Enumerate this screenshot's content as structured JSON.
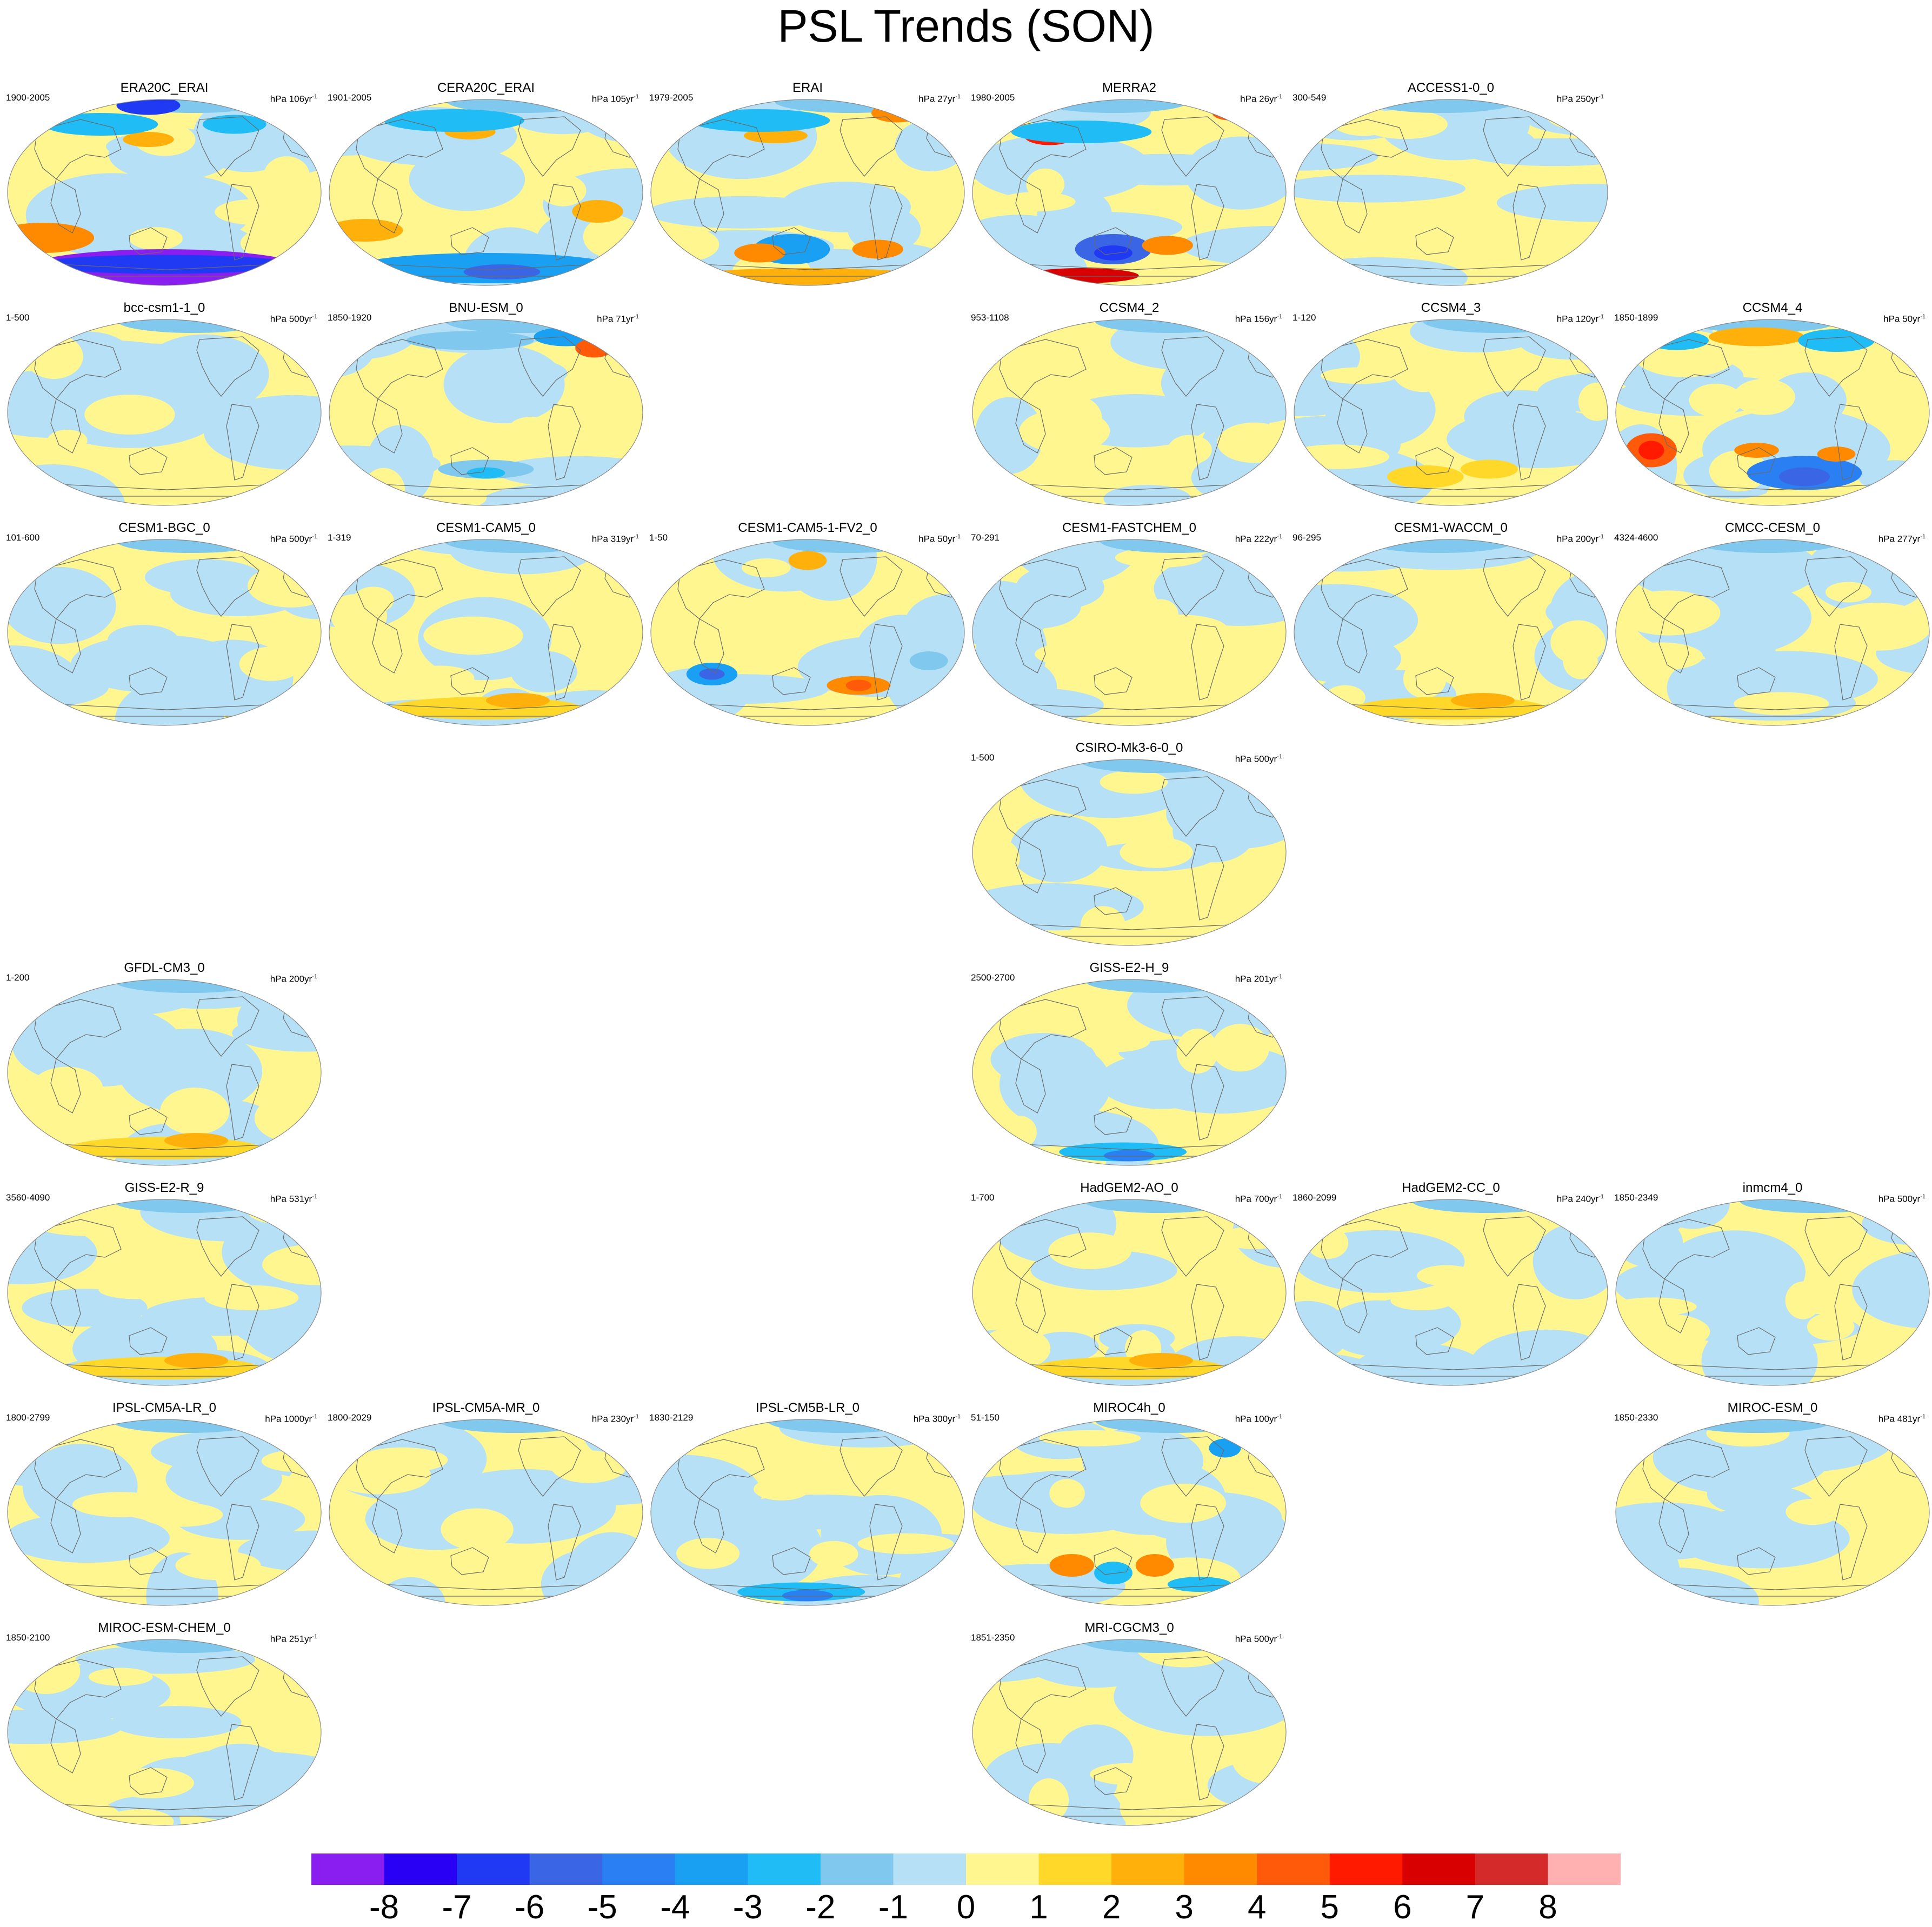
{
  "title": "PSL Trends (SON)",
  "colorbar": {
    "levels": [
      "-8",
      "-7",
      "-6",
      "-5",
      "-4",
      "-3",
      "-2",
      "-1",
      "0",
      "1",
      "2",
      "3",
      "4",
      "5",
      "6",
      "7",
      "8"
    ],
    "colors": [
      "#8a1ef0",
      "#2a00f5",
      "#1f3af2",
      "#3a66e6",
      "#2a80f2",
      "#1aa0f2",
      "#20bcf5",
      "#80c8ee",
      "#b6e0f5",
      "#fff690",
      "#ffd82a",
      "#ffb00a",
      "#ff8a00",
      "#ff5a0a",
      "#ff1a00",
      "#d80000",
      "#d42a2a",
      "#ffb0b0"
    ]
  },
  "panels": [
    {
      "id": "era20c-erai",
      "name": "ERA20C_ERAI",
      "range": "1900-2005",
      "unit": "hPa 106yr",
      "row": 0,
      "col": 0,
      "pattern": "strong-neg-south",
      "seed": 11
    },
    {
      "id": "cera20c-erai",
      "name": "CERA20C_ERAI",
      "range": "1901-2005",
      "unit": "hPa 105yr",
      "row": 0,
      "col": 1,
      "pattern": "warm-neg-south",
      "seed": 12
    },
    {
      "id": "erai",
      "name": "ERAI",
      "range": "1979-2005",
      "unit": "hPa 27yr",
      "row": 0,
      "col": 2,
      "pattern": "warm-dipole-south",
      "seed": 13
    },
    {
      "id": "merra2",
      "name": "MERRA2",
      "range": "1980-2005",
      "unit": "hPa 26yr",
      "row": 0,
      "col": 3,
      "pattern": "red-dipole",
      "seed": 14
    },
    {
      "id": "access1-0",
      "name": "ACCESS1-0_0",
      "range": "300-549",
      "unit": "hPa 250yr",
      "row": 0,
      "col": 4,
      "pattern": "mild",
      "seed": 15
    },
    {
      "id": "bcc-csm1-1",
      "name": "bcc-csm1-1_0",
      "range": "1-500",
      "unit": "hPa 500yr",
      "row": 1,
      "col": 0,
      "pattern": "mild",
      "seed": 21
    },
    {
      "id": "bnu-esm",
      "name": "BNU-ESM_0",
      "range": "1850-1920",
      "unit": "hPa 71yr",
      "row": 1,
      "col": 1,
      "pattern": "north-dipole",
      "seed": 22
    },
    {
      "id": "ccsm4-2",
      "name": "CCSM4_2",
      "range": "953-1108",
      "unit": "hPa 156yr",
      "row": 1,
      "col": 3,
      "pattern": "mild",
      "seed": 23
    },
    {
      "id": "ccsm4-3",
      "name": "CCSM4_3",
      "range": "1-120",
      "unit": "hPa 120yr",
      "row": 1,
      "col": 4,
      "pattern": "mild-south",
      "seed": 24
    },
    {
      "id": "ccsm4-4",
      "name": "CCSM4_4",
      "range": "1850-1899",
      "unit": "hPa 50yr",
      "row": 1,
      "col": 5,
      "pattern": "strong-mixed",
      "seed": 25
    },
    {
      "id": "cesm1-bgc",
      "name": "CESM1-BGC_0",
      "range": "101-600",
      "unit": "hPa 500yr",
      "row": 2,
      "col": 0,
      "pattern": "mild",
      "seed": 31
    },
    {
      "id": "cesm1-cam5",
      "name": "CESM1-CAM5_0",
      "range": "1-319",
      "unit": "hPa 319yr",
      "row": 2,
      "col": 1,
      "pattern": "mild-south-warm",
      "seed": 32
    },
    {
      "id": "cesm1-cam5-1-fv2",
      "name": "CESM1-CAM5-1-FV2_0",
      "range": "1-50",
      "unit": "hPa 50yr",
      "row": 2,
      "col": 2,
      "pattern": "moderate-mixed",
      "seed": 33
    },
    {
      "id": "cesm1-fastchem",
      "name": "CESM1-FASTCHEM_0",
      "range": "70-291",
      "unit": "hPa 222yr",
      "row": 2,
      "col": 3,
      "pattern": "mild",
      "seed": 34
    },
    {
      "id": "cesm1-waccm",
      "name": "CESM1-WACCM_0",
      "range": "96-295",
      "unit": "hPa 200yr",
      "row": 2,
      "col": 4,
      "pattern": "mild-south-warm",
      "seed": 35
    },
    {
      "id": "cmcc-cesm",
      "name": "CMCC-CESM_0",
      "range": "4324-4600",
      "unit": "hPa 277yr",
      "row": 2,
      "col": 5,
      "pattern": "mild",
      "seed": 36
    },
    {
      "id": "csiro-mk3-6-0",
      "name": "CSIRO-Mk3-6-0_0",
      "range": "1-500",
      "unit": "hPa 500yr",
      "row": 3,
      "col": 3,
      "pattern": "mild",
      "seed": 41
    },
    {
      "id": "gfdl-cm3",
      "name": "GFDL-CM3_0",
      "range": "1-200",
      "unit": "hPa 200yr",
      "row": 4,
      "col": 0,
      "pattern": "mild-south-warm",
      "seed": 51
    },
    {
      "id": "giss-e2-h",
      "name": "GISS-E2-H_9",
      "range": "2500-2700",
      "unit": "hPa 201yr",
      "row": 4,
      "col": 3,
      "pattern": "mild-south-cool",
      "seed": 52
    },
    {
      "id": "giss-e2-r",
      "name": "GISS-E2-R_9",
      "range": "3560-4090",
      "unit": "hPa 531yr",
      "row": 5,
      "col": 0,
      "pattern": "mild-south-warm",
      "seed": 61
    },
    {
      "id": "hadgem2-ao",
      "name": "HadGEM2-AO_0",
      "range": "1-700",
      "unit": "hPa 700yr",
      "row": 5,
      "col": 3,
      "pattern": "mild-south-warm",
      "seed": 62
    },
    {
      "id": "hadgem2-cc",
      "name": "HadGEM2-CC_0",
      "range": "1860-2099",
      "unit": "hPa 240yr",
      "row": 5,
      "col": 4,
      "pattern": "mild",
      "seed": 63
    },
    {
      "id": "inmcm4",
      "name": "inmcm4_0",
      "range": "1850-2349",
      "unit": "hPa 500yr",
      "row": 5,
      "col": 5,
      "pattern": "mild",
      "seed": 64
    },
    {
      "id": "ipsl-cm5a-lr",
      "name": "IPSL-CM5A-LR_0",
      "range": "1800-2799",
      "unit": "hPa 1000yr",
      "row": 6,
      "col": 0,
      "pattern": "mild",
      "seed": 71
    },
    {
      "id": "ipsl-cm5a-mr",
      "name": "IPSL-CM5A-MR_0",
      "range": "1800-2029",
      "unit": "hPa 230yr",
      "row": 6,
      "col": 1,
      "pattern": "mild",
      "seed": 72
    },
    {
      "id": "ipsl-cm5b-lr",
      "name": "IPSL-CM5B-LR_0",
      "range": "1830-2129",
      "unit": "hPa 300yr",
      "row": 6,
      "col": 2,
      "pattern": "mild-south-cool",
      "seed": 73
    },
    {
      "id": "miroc4h",
      "name": "MIROC4h_0",
      "range": "51-150",
      "unit": "hPa 100yr",
      "row": 6,
      "col": 3,
      "pattern": "moderate-south-dipole",
      "seed": 74
    },
    {
      "id": "miroc-esm",
      "name": "MIROC-ESM_0",
      "range": "1850-2330",
      "unit": "hPa 481yr",
      "row": 6,
      "col": 5,
      "pattern": "mild",
      "seed": 75
    },
    {
      "id": "miroc-esm-chem",
      "name": "MIROC-ESM-CHEM_0",
      "range": "1850-2100",
      "unit": "hPa 251yr",
      "row": 7,
      "col": 0,
      "pattern": "mild",
      "seed": 81
    },
    {
      "id": "mri-cgcm3",
      "name": "MRI-CGCM3_0",
      "range": "1851-2350",
      "unit": "hPa 500yr",
      "row": 7,
      "col": 3,
      "pattern": "mild",
      "seed": 82
    }
  ]
}
